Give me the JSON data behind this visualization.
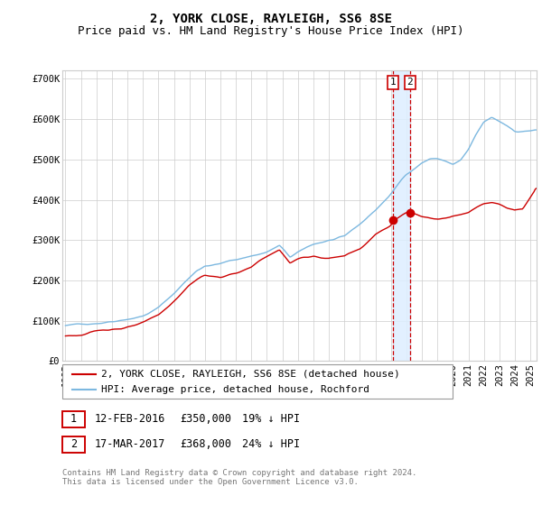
{
  "title": "2, YORK CLOSE, RAYLEIGH, SS6 8SE",
  "subtitle": "Price paid vs. HM Land Registry's House Price Index (HPI)",
  "ylim": [
    0,
    720000
  ],
  "yticks": [
    0,
    100000,
    200000,
    300000,
    400000,
    500000,
    600000,
    700000
  ],
  "ytick_labels": [
    "£0",
    "£100K",
    "£200K",
    "£300K",
    "£400K",
    "£500K",
    "£600K",
    "£700K"
  ],
  "hpi_color": "#7cb8e0",
  "price_color": "#cc0000",
  "marker_color": "#cc0000",
  "vline_color": "#cc0000",
  "vshade_color": "#ddeeff",
  "background_color": "#ffffff",
  "grid_color": "#cccccc",
  "legend_label_price": "2, YORK CLOSE, RAYLEIGH, SS6 8SE (detached house)",
  "legend_label_hpi": "HPI: Average price, detached house, Rochford",
  "annotation1_date": "12-FEB-2016",
  "annotation1_price": "£350,000",
  "annotation1_hpi": "19% ↓ HPI",
  "annotation2_date": "17-MAR-2017",
  "annotation2_price": "£368,000",
  "annotation2_hpi": "24% ↓ HPI",
  "footer": "Contains HM Land Registry data © Crown copyright and database right 2024.\nThis data is licensed under the Open Government Licence v3.0.",
  "sale1_year": 2016.12,
  "sale1_price": 350000,
  "sale2_year": 2017.22,
  "sale2_price": 368000,
  "start_year": 1995.0,
  "end_year": 2025.4,
  "title_fontsize": 10,
  "subtitle_fontsize": 9,
  "tick_fontsize": 7.5,
  "legend_fontsize": 8,
  "annotation_fontsize": 8.5,
  "footer_fontsize": 6.5
}
